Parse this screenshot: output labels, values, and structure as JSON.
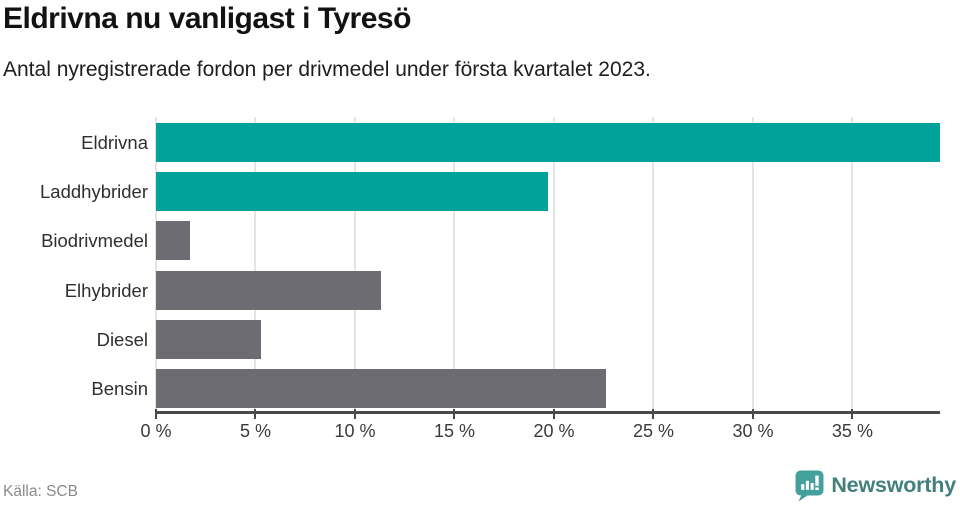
{
  "header": {
    "title": "Eldrivna nu vanligast i Tyresö",
    "subtitle": "Antal nyregistrerade fordon per drivmedel under första kvartalet 2023."
  },
  "chart_data": {
    "type": "bar",
    "orientation": "horizontal",
    "title": "Eldrivna nu vanligast i Tyresö",
    "subtitle": "Antal nyregistrerade fordon per drivmedel under första kvartalet 2023.",
    "categories": [
      "Eldrivna",
      "Laddhybrider",
      "Biodrivmedel",
      "Elhybrider",
      "Diesel",
      "Bensin"
    ],
    "values": [
      39.4,
      19.7,
      1.7,
      11.3,
      5.3,
      22.6
    ],
    "unit": "%",
    "highlighted": [
      true,
      true,
      false,
      false,
      false,
      false
    ],
    "xlabel": "",
    "ylabel": "",
    "xlim": [
      0,
      39.4
    ],
    "x_ticks": [
      0,
      5,
      10,
      15,
      20,
      25,
      30,
      35
    ],
    "x_tick_labels": [
      "0 %",
      "5 %",
      "10 %",
      "15 %",
      "20 %",
      "25 %",
      "30 %",
      "35 %"
    ],
    "grid": true,
    "legend": false
  },
  "colors": {
    "bar_highlight": "#00A299",
    "bar_default": "#6C6C72",
    "gridline": "#E4E4E4",
    "axis": "#4A4A4A",
    "logo_teal": "#44A09A",
    "logo_text": "#427F7D"
  },
  "footer": {
    "source": "Källa: SCB",
    "brand": "Newsworthy"
  }
}
